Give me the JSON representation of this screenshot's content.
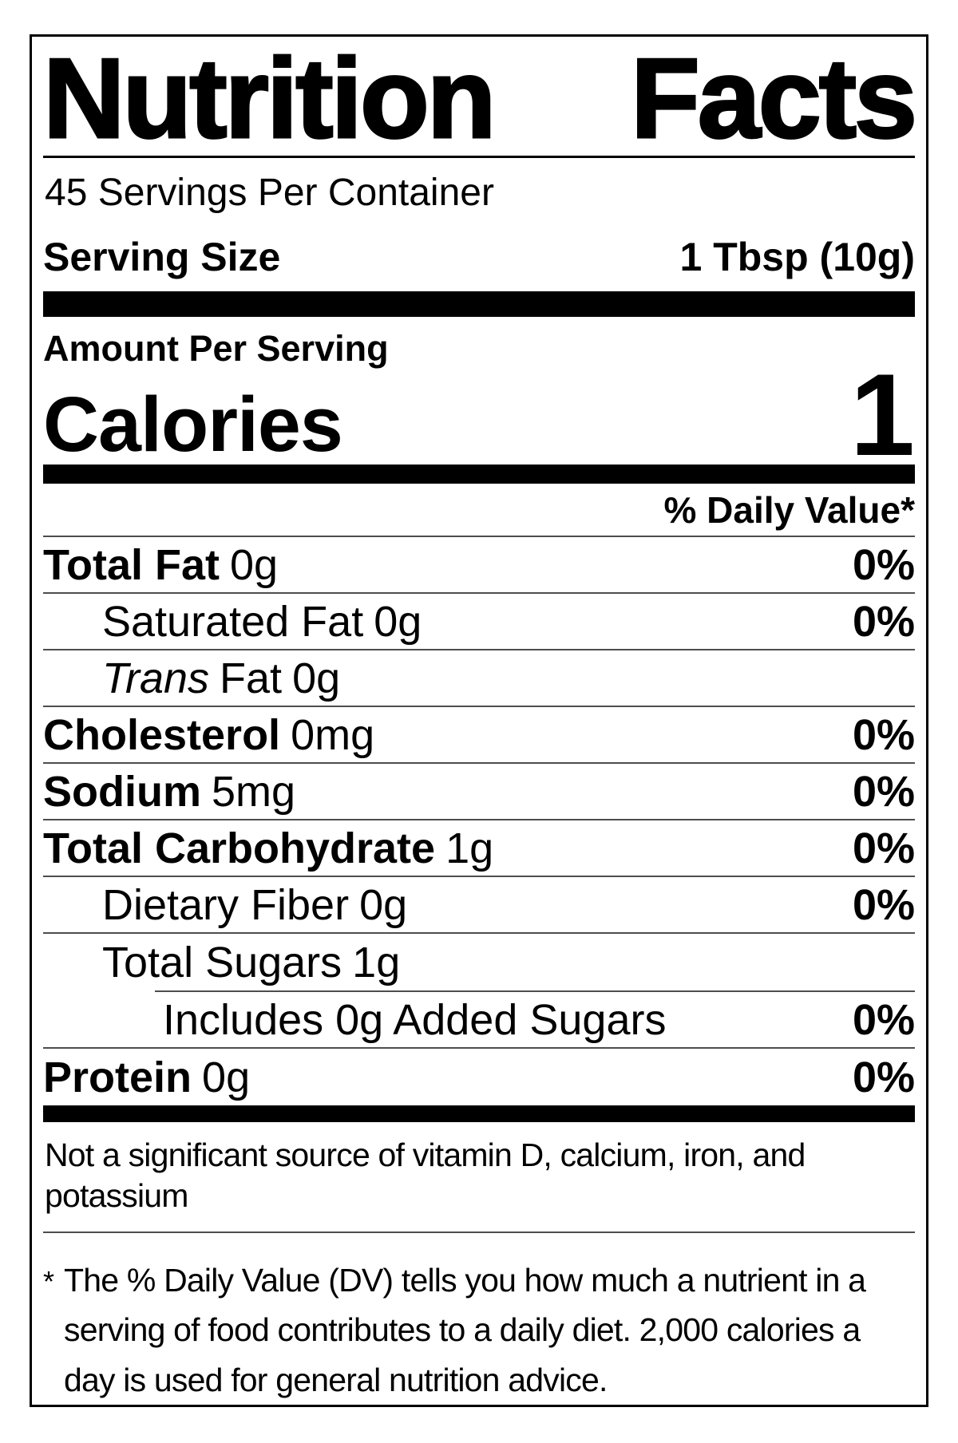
{
  "colors": {
    "text": "#000000",
    "background": "#ffffff",
    "bar": "#000000",
    "hairline": "#4d4d4d"
  },
  "label": {
    "title": {
      "word1": "Nutrition",
      "word2": "Facts"
    },
    "servings_per_container": "45 Servings Per Container",
    "serving_size": {
      "label": "Serving Size",
      "value": "1 Tbsp (10g)"
    },
    "amount_per_serving": "Amount Per Serving",
    "calories": {
      "label": "Calories",
      "value": "1"
    },
    "daily_value_header": "% Daily Value*",
    "nutrients": [
      {
        "name": "Total Fat",
        "bold": true,
        "amount": "0g",
        "dv": "0%",
        "indent": 0,
        "sep": "full"
      },
      {
        "name": "Saturated Fat",
        "bold": false,
        "amount": "0g",
        "dv": "0%",
        "indent": 1,
        "sep": "full"
      },
      {
        "name_italic": "Trans",
        "name": "Fat",
        "bold": false,
        "amount": "0g",
        "dv": "",
        "indent": 1,
        "sep": "full"
      },
      {
        "name": "Cholesterol",
        "bold": true,
        "amount": "0mg",
        "dv": "0%",
        "indent": 0,
        "sep": "full"
      },
      {
        "name": "Sodium",
        "bold": true,
        "amount": "5mg",
        "dv": "0%",
        "indent": 0,
        "sep": "full"
      },
      {
        "name": "Total Carbohydrate",
        "bold": true,
        "amount": "1g",
        "dv": "0%",
        "indent": 0,
        "sep": "full"
      },
      {
        "name": "Dietary Fiber",
        "bold": false,
        "amount": "0g",
        "dv": "0%",
        "indent": 1,
        "sep": "full"
      },
      {
        "name": "Total Sugars",
        "bold": false,
        "amount": "1g",
        "dv": "",
        "indent": 1,
        "sep": "indent"
      },
      {
        "name": "Includes 0g Added Sugars",
        "bold": false,
        "amount": "",
        "dv": "0%",
        "indent": 2,
        "sep": "full"
      },
      {
        "name": "Protein",
        "bold": true,
        "amount": "0g",
        "dv": "0%",
        "indent": 0,
        "sep": "none"
      }
    ],
    "not_significant": "Not a significant source of vitamin D, calcium, iron, and potassium",
    "footnote": {
      "marker": "*",
      "text": "The % Daily Value (DV) tells you how much a nutrient in a serving of food contributes to a daily diet. 2,000 calories a day is used for general nutrition advice."
    }
  }
}
